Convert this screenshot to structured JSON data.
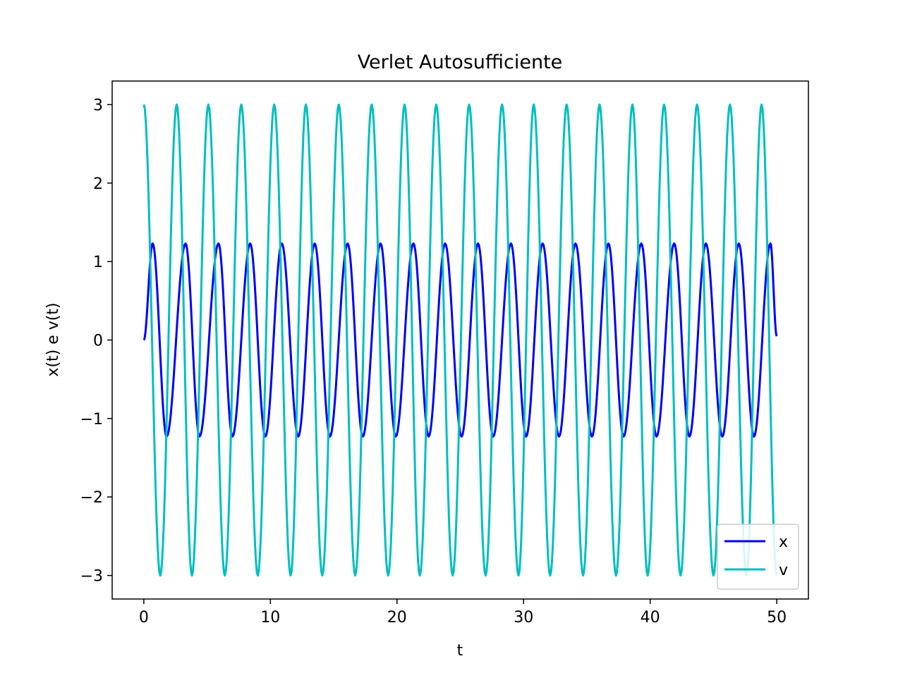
{
  "chart_data": {
    "type": "line",
    "title": "Verlet Autosufficiente",
    "xlabel": "t",
    "ylabel": "x(t) e v(t)",
    "xlim": [
      -2.5,
      52.5
    ],
    "ylim": [
      -3.3,
      3.3
    ],
    "xticks": [
      0,
      10,
      20,
      30,
      40,
      50
    ],
    "xtick_labels": [
      "0",
      "10",
      "20",
      "30",
      "40",
      "50"
    ],
    "yticks": [
      3,
      2,
      1,
      0,
      -1,
      -2,
      -3
    ],
    "ytick_labels": [
      "3",
      "2",
      "1",
      "0",
      "−1",
      "−2",
      "−3"
    ],
    "grid": false,
    "legend_position": "lower right",
    "series": [
      {
        "name": "x",
        "color": "#0000ff",
        "t_range": [
          0,
          50
        ],
        "x_peaks_t": [
          0.7,
          3.3,
          5.9,
          8.4,
          10.9,
          13.5,
          16.1,
          18.7,
          21.3,
          23.8,
          26.4,
          29.0,
          31.5,
          34.1,
          36.7,
          39.3,
          41.9,
          44.4,
          47.0,
          49.5
        ],
        "x_peak_value": 1.23,
        "x_trough_t": [
          1.8,
          4.4,
          7.0,
          9.6,
          12.2,
          14.7,
          17.3,
          19.9,
          22.5,
          25.1,
          27.6,
          30.2,
          32.8,
          35.4,
          37.9,
          40.5,
          43.1,
          45.7,
          48.2
        ],
        "x_trough_value": -1.23,
        "x_start": 0.0,
        "x_end": 0.05
      },
      {
        "name": "v",
        "color": "#00bfbf",
        "t_range": [
          0,
          50
        ],
        "v_peaks_t": [
          0.0,
          2.6,
          5.1,
          7.7,
          10.3,
          12.8,
          15.4,
          18.0,
          20.6,
          23.1,
          25.7,
          28.3,
          30.8,
          33.4,
          36.0,
          38.6,
          41.1,
          43.7,
          46.3,
          48.8
        ],
        "v_peak_value": 3.0,
        "v_trough_t": [
          1.3,
          3.8,
          6.4,
          9.0,
          11.6,
          14.1,
          16.7,
          19.3,
          21.8,
          24.4,
          27.0,
          29.6,
          32.1,
          34.7,
          37.3,
          39.8,
          42.4,
          45.0,
          47.6
        ],
        "v_trough_value": -3.0,
        "v_end": -3.0
      }
    ]
  }
}
